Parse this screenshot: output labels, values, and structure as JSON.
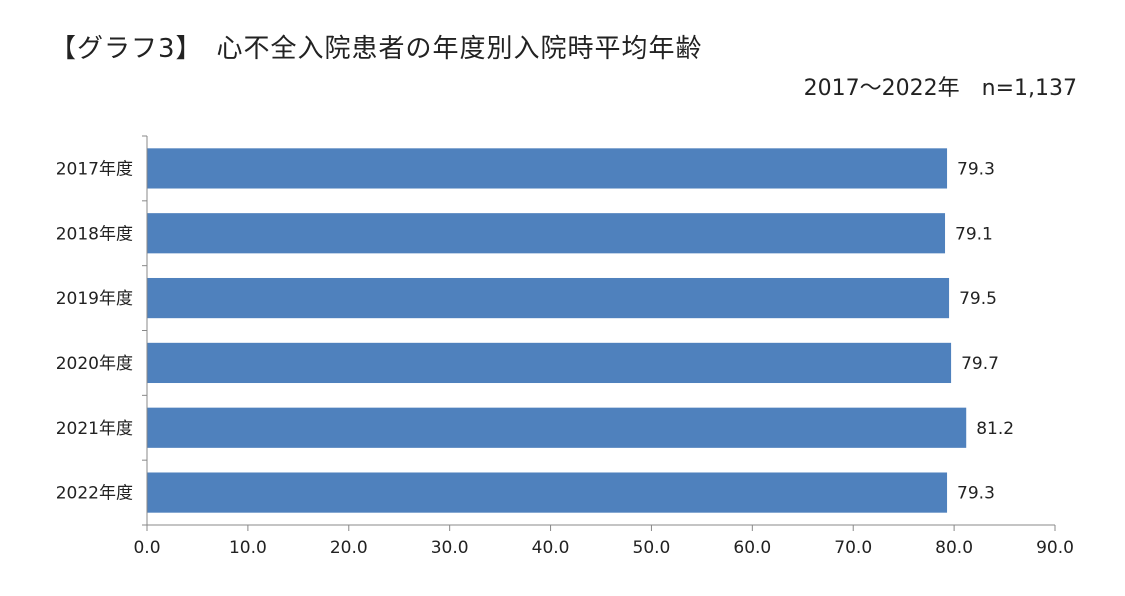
{
  "header": {
    "title": "【グラフ3】　心不全入院患者の年度別入院時平均年齢",
    "subtitle": "2017～2022年　n=1,137"
  },
  "colors": {
    "bar": "#4f81bd",
    "axis": "#888888"
  },
  "chart_data": {
    "type": "bar",
    "orientation": "horizontal",
    "title": "【グラフ3】　心不全入院患者の年度別入院時平均年齢",
    "subtitle": "2017～2022年　n=1,137",
    "categories": [
      "2017年度",
      "2018年度",
      "2019年度",
      "2020年度",
      "2021年度",
      "2022年度"
    ],
    "values": [
      79.3,
      79.1,
      79.5,
      79.7,
      81.2,
      79.3
    ],
    "value_labels": [
      "79.3",
      "79.1",
      "79.5",
      "79.7",
      "81.2",
      "79.3"
    ],
    "xlim": [
      0,
      90
    ],
    "xticks": [
      "0.0",
      "10.0",
      "20.0",
      "30.0",
      "40.0",
      "50.0",
      "60.0",
      "70.0",
      "80.0",
      "90.0"
    ],
    "grid": false,
    "legend": "none"
  }
}
